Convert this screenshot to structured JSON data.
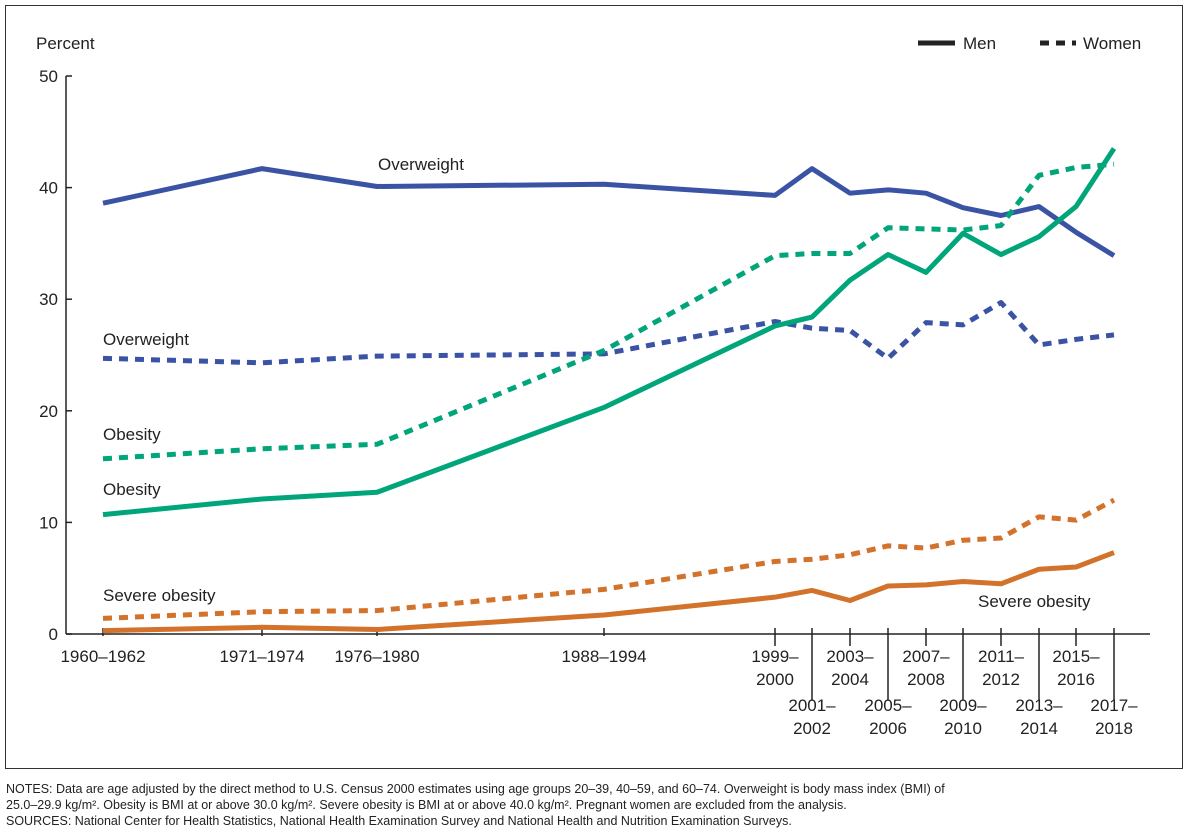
{
  "chart_data": {
    "type": "line",
    "ylabel": "Percent",
    "ylim": [
      0,
      50
    ],
    "yticks": [
      0,
      10,
      20,
      30,
      40,
      50
    ],
    "grid": false,
    "legend_position": "top-right",
    "legend": [
      {
        "label": "Men",
        "style": "solid"
      },
      {
        "label": "Women",
        "style": "dotted"
      }
    ],
    "categories": [
      "1960–1962",
      "1971–1974",
      "1976–1980",
      "1988–1994",
      "1999–2000",
      "2001–2002",
      "2003–2004",
      "2005–2006",
      "2007–2008",
      "2009–2010",
      "2011–2012",
      "2013–2014",
      "2015–2016",
      "2017–2018"
    ],
    "series": [
      {
        "name": "Overweight",
        "group": "Men",
        "color": "#3a53a4",
        "dashed": false,
        "values": [
          38.6,
          41.7,
          40.1,
          40.3,
          39.3,
          41.7,
          39.5,
          39.8,
          39.5,
          38.2,
          37.5,
          38.3,
          36.0,
          33.9
        ]
      },
      {
        "name": "Overweight",
        "group": "Women",
        "color": "#3a53a4",
        "dashed": true,
        "values": [
          24.7,
          24.3,
          24.9,
          25.1,
          28.0,
          27.4,
          27.2,
          24.7,
          27.9,
          27.7,
          29.7,
          25.9,
          26.4,
          26.8
        ]
      },
      {
        "name": "Obesity",
        "group": "Women",
        "color": "#00a57a",
        "dashed": true,
        "values": [
          15.7,
          16.6,
          17.0,
          25.4,
          33.9,
          34.1,
          34.1,
          36.4,
          36.3,
          36.2,
          36.6,
          41.1,
          41.8,
          42.1
        ]
      },
      {
        "name": "Obesity",
        "group": "Men",
        "color": "#00a57a",
        "dashed": false,
        "values": [
          10.7,
          12.1,
          12.7,
          20.3,
          27.6,
          28.4,
          31.7,
          34.0,
          32.4,
          35.9,
          34.0,
          35.6,
          38.3,
          43.5
        ]
      },
      {
        "name": "Severe obesity",
        "group": "Women",
        "color": "#d2722b",
        "dashed": true,
        "values": [
          1.4,
          2.0,
          2.1,
          4.0,
          6.5,
          6.7,
          7.1,
          7.9,
          7.7,
          8.4,
          8.6,
          10.5,
          10.2,
          12.0
        ]
      },
      {
        "name": "Severe obesity",
        "group": "Men",
        "color": "#d2722b",
        "dashed": false,
        "values": [
          0.3,
          0.6,
          0.4,
          1.7,
          3.3,
          3.9,
          3.0,
          4.3,
          4.4,
          4.7,
          4.5,
          5.8,
          6.0,
          7.3
        ]
      }
    ]
  },
  "notes": [
    "NOTES: Data are age adjusted by the direct method to U.S. Census 2000 estimates using age groups 20–39, 40–59, and 60–74. Overweight is body mass index (BMI) of",
    "25.0–29.9 kg/m². Obesity is BMI at or above 30.0 kg/m². Severe obesity is BMI at or above 40.0 kg/m². Pregnant women are excluded from the analysis.",
    "SOURCES: National Center for Health Statistics, National Health Examination Survey and National Health and Nutrition Examination Surveys."
  ]
}
